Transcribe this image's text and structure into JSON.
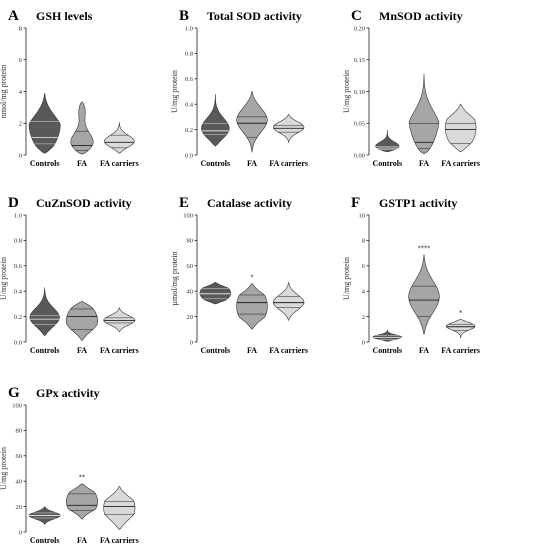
{
  "colors": {
    "Controls": "#595959",
    "FA": "#a6a6a6",
    "FA carriers": "#d9d9d9"
  },
  "chart_data": [
    {
      "type": "violin",
      "letter": "A",
      "title": "GSH levels",
      "ylabel": "nmol/mg protein",
      "ylim": [
        0,
        8
      ],
      "ticks": [
        "0",
        "2",
        "4",
        "6",
        "8"
      ],
      "tickvals": [
        0,
        2,
        4,
        6,
        8
      ],
      "categories": [
        "Controls",
        "FA",
        "FA carriers"
      ],
      "violins": [
        {
          "min": 0.1,
          "max": 3.9,
          "q1": 0.7,
          "median": 1.1,
          "q3": 2.1,
          "peaks": [
            [
              0.9,
              1.0
            ],
            [
              2.1,
              0.55
            ]
          ]
        },
        {
          "min": 0.05,
          "max": 3.35,
          "q1": 0.3,
          "median": 0.6,
          "q3": 1.5,
          "peaks": [
            [
              0.5,
              1.0
            ],
            [
              3.2,
              0.35
            ]
          ]
        },
        {
          "min": 0.1,
          "max": 2.05,
          "q1": 0.45,
          "median": 0.8,
          "q3": 1.25,
          "peaks": [
            [
              0.8,
              1.0
            ]
          ]
        }
      ],
      "sig": [
        "",
        "",
        ""
      ]
    },
    {
      "type": "violin",
      "letter": "B",
      "title": "Total SOD activity",
      "ylabel": "U/mg protein",
      "ylim": [
        0,
        1.0
      ],
      "ticks": [
        "0.0",
        "0.2",
        "0.4",
        "0.6",
        "0.8",
        "1.0"
      ],
      "tickvals": [
        0,
        0.2,
        0.4,
        0.6,
        0.8,
        1.0
      ],
      "categories": [
        "Controls",
        "FA",
        "FA carriers"
      ],
      "violins": [
        {
          "min": 0.07,
          "max": 0.48,
          "q1": 0.16,
          "median": 0.19,
          "q3": 0.25,
          "peaks": [
            [
              0.19,
              1.0
            ]
          ]
        },
        {
          "min": 0.02,
          "max": 0.5,
          "q1": 0.14,
          "median": 0.25,
          "q3": 0.3,
          "peaks": [
            [
              0.28,
              1.0
            ]
          ]
        },
        {
          "min": 0.1,
          "max": 0.32,
          "q1": 0.18,
          "median": 0.21,
          "q3": 0.23,
          "peaks": [
            [
              0.22,
              1.0
            ]
          ]
        }
      ],
      "sig": [
        "",
        "",
        ""
      ]
    },
    {
      "type": "violin",
      "letter": "C",
      "title": "MnSOD activity",
      "ylabel": "U/mg protein",
      "ylim": [
        0,
        0.2
      ],
      "ticks": [
        "0.00",
        "0.05",
        "0.10",
        "0.15",
        "0.20"
      ],
      "tickvals": [
        0,
        0.05,
        0.1,
        0.15,
        0.2
      ],
      "categories": [
        "Controls",
        "FA",
        "FA carriers"
      ],
      "violins": [
        {
          "min": 0.005,
          "max": 0.04,
          "q1": 0.009,
          "median": 0.011,
          "q3": 0.013,
          "peaks": [
            [
              0.011,
              1.0
            ]
          ]
        },
        {
          "min": 0.002,
          "max": 0.128,
          "q1": 0.01,
          "median": 0.02,
          "q3": 0.05,
          "peaks": [
            [
              0.015,
              1.0
            ],
            [
              0.05,
              0.6
            ]
          ]
        },
        {
          "min": 0.005,
          "max": 0.08,
          "q1": 0.018,
          "median": 0.04,
          "q3": 0.05,
          "peaks": [
            [
              0.05,
              1.0
            ],
            [
              0.02,
              0.8
            ]
          ]
        }
      ],
      "sig": [
        "",
        "",
        ""
      ]
    },
    {
      "type": "violin",
      "letter": "D",
      "title": "CuZnSOD activity",
      "ylabel": "U/mg protein",
      "ylim": [
        0,
        1.0
      ],
      "ticks": [
        "0.0",
        "0.2",
        "0.4",
        "0.6",
        "0.8",
        "1.0"
      ],
      "tickvals": [
        0,
        0.2,
        0.4,
        0.6,
        0.8,
        1.0
      ],
      "categories": [
        "Controls",
        "FA",
        "FA carriers"
      ],
      "violins": [
        {
          "min": 0.05,
          "max": 0.43,
          "q1": 0.14,
          "median": 0.18,
          "q3": 0.21,
          "peaks": [
            [
              0.18,
              1.0
            ]
          ]
        },
        {
          "min": 0.01,
          "max": 0.32,
          "q1": 0.1,
          "median": 0.2,
          "q3": 0.26,
          "peaks": [
            [
              0.25,
              1.0
            ],
            [
              0.12,
              0.75
            ]
          ]
        },
        {
          "min": 0.08,
          "max": 0.27,
          "q1": 0.15,
          "median": 0.17,
          "q3": 0.19,
          "peaks": [
            [
              0.17,
              1.0
            ]
          ]
        }
      ],
      "sig": [
        "",
        "",
        ""
      ]
    },
    {
      "type": "violin",
      "letter": "E",
      "title": "Catalase activity",
      "ylabel": "µmol/mg protein",
      "ylim": [
        0,
        100
      ],
      "ticks": [
        "0",
        "20",
        "40",
        "60",
        "80",
        "100"
      ],
      "tickvals": [
        0,
        20,
        40,
        60,
        80,
        100
      ],
      "categories": [
        "Controls",
        "FA",
        "FA carriers"
      ],
      "violins": [
        {
          "min": 30,
          "max": 47,
          "q1": 34,
          "median": 38,
          "q3": 42,
          "peaks": [
            [
              41,
              1.0
            ],
            [
              34,
              0.9
            ]
          ]
        },
        {
          "min": 10,
          "max": 46,
          "q1": 22,
          "median": 31,
          "q3": 37,
          "peaks": [
            [
              33,
              1.0
            ],
            [
              22,
              0.8
            ]
          ]
        },
        {
          "min": 17,
          "max": 47,
          "q1": 27,
          "median": 31,
          "q3": 36,
          "peaks": [
            [
              31,
              1.0
            ]
          ]
        }
      ],
      "sig": [
        "",
        "*",
        ""
      ]
    },
    {
      "type": "violin",
      "letter": "F",
      "title": "GSTP1 activity",
      "ylabel": "U/mg protein",
      "ylim": [
        0,
        10
      ],
      "ticks": [
        "0",
        "2",
        "4",
        "6",
        "8",
        "10"
      ],
      "tickvals": [
        0,
        2,
        4,
        6,
        8,
        10
      ],
      "categories": [
        "Controls",
        "FA",
        "FA carriers"
      ],
      "violins": [
        {
          "min": 0.05,
          "max": 0.95,
          "q1": 0.2,
          "median": 0.35,
          "q3": 0.5,
          "peaks": [
            [
              0.35,
              1.0
            ]
          ]
        },
        {
          "min": 0.6,
          "max": 6.9,
          "q1": 2.0,
          "median": 3.3,
          "q3": 4.4,
          "peaks": [
            [
              3.5,
              1.0
            ]
          ]
        },
        {
          "min": 0.3,
          "max": 1.8,
          "q1": 0.9,
          "median": 1.2,
          "q3": 1.4,
          "peaks": [
            [
              1.3,
              1.0
            ]
          ]
        }
      ],
      "sig": [
        "",
        "****",
        "*"
      ]
    },
    {
      "type": "violin",
      "letter": "G",
      "title": "GPx activity",
      "ylabel": "U/mg protein",
      "ylim": [
        0,
        100
      ],
      "ticks": [
        "0",
        "20",
        "40",
        "60",
        "80",
        "100"
      ],
      "tickvals": [
        0,
        20,
        40,
        60,
        80,
        100
      ],
      "categories": [
        "Controls",
        "FA",
        "FA carriers"
      ],
      "violins": [
        {
          "min": 6,
          "max": 20,
          "q1": 11,
          "median": 13,
          "q3": 15,
          "peaks": [
            [
              13,
              1.0
            ]
          ]
        },
        {
          "min": 10,
          "max": 38,
          "q1": 17,
          "median": 21,
          "q3": 30,
          "peaks": [
            [
              21,
              1.0
            ],
            [
              30,
              0.8
            ]
          ]
        },
        {
          "min": 2,
          "max": 36,
          "q1": 14,
          "median": 20,
          "q3": 24,
          "peaks": [
            [
              22,
              1.0
            ],
            [
              10,
              0.5
            ]
          ]
        }
      ],
      "sig": [
        "",
        "**",
        ""
      ]
    }
  ]
}
